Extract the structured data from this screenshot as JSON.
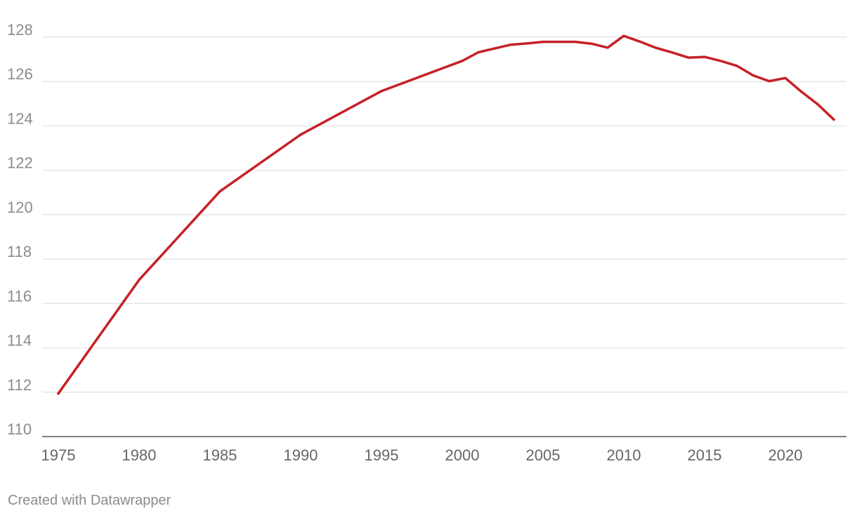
{
  "chart_data": {
    "type": "line",
    "title": "",
    "xlabel": "",
    "ylabel": "",
    "xlim": [
      1975,
      2023
    ],
    "ylim": [
      110,
      128
    ],
    "y_ticks": [
      "110",
      "112",
      "114",
      "116",
      "118",
      "120",
      "122",
      "124",
      "126",
      "128"
    ],
    "x_ticks": [
      "1975",
      "1980",
      "1985",
      "1990",
      "1995",
      "2000",
      "2005",
      "2010",
      "2015",
      "2020"
    ],
    "grid": true,
    "line_color": "#c62127",
    "series": [
      {
        "x": [
          1975,
          1980,
          1985,
          1990,
          1995,
          2000,
          2001,
          2002,
          2003,
          2004,
          2005,
          2006,
          2007,
          2008,
          2009,
          2010,
          2011,
          2012,
          2013,
          2014,
          2015,
          2016,
          2017,
          2018,
          2019,
          2020,
          2021,
          2022,
          2023
        ],
        "y": [
          111.94,
          117.06,
          121.05,
          123.61,
          125.57,
          126.93,
          127.32,
          127.49,
          127.66,
          127.72,
          127.79,
          127.79,
          127.79,
          127.71,
          127.53,
          128.06,
          127.8,
          127.52,
          127.31,
          127.08,
          127.11,
          126.93,
          126.71,
          126.28,
          126.02,
          126.16,
          125.54,
          124.98,
          124.29
        ]
      }
    ]
  },
  "footer": {
    "credit": "Created with Datawrapper"
  }
}
